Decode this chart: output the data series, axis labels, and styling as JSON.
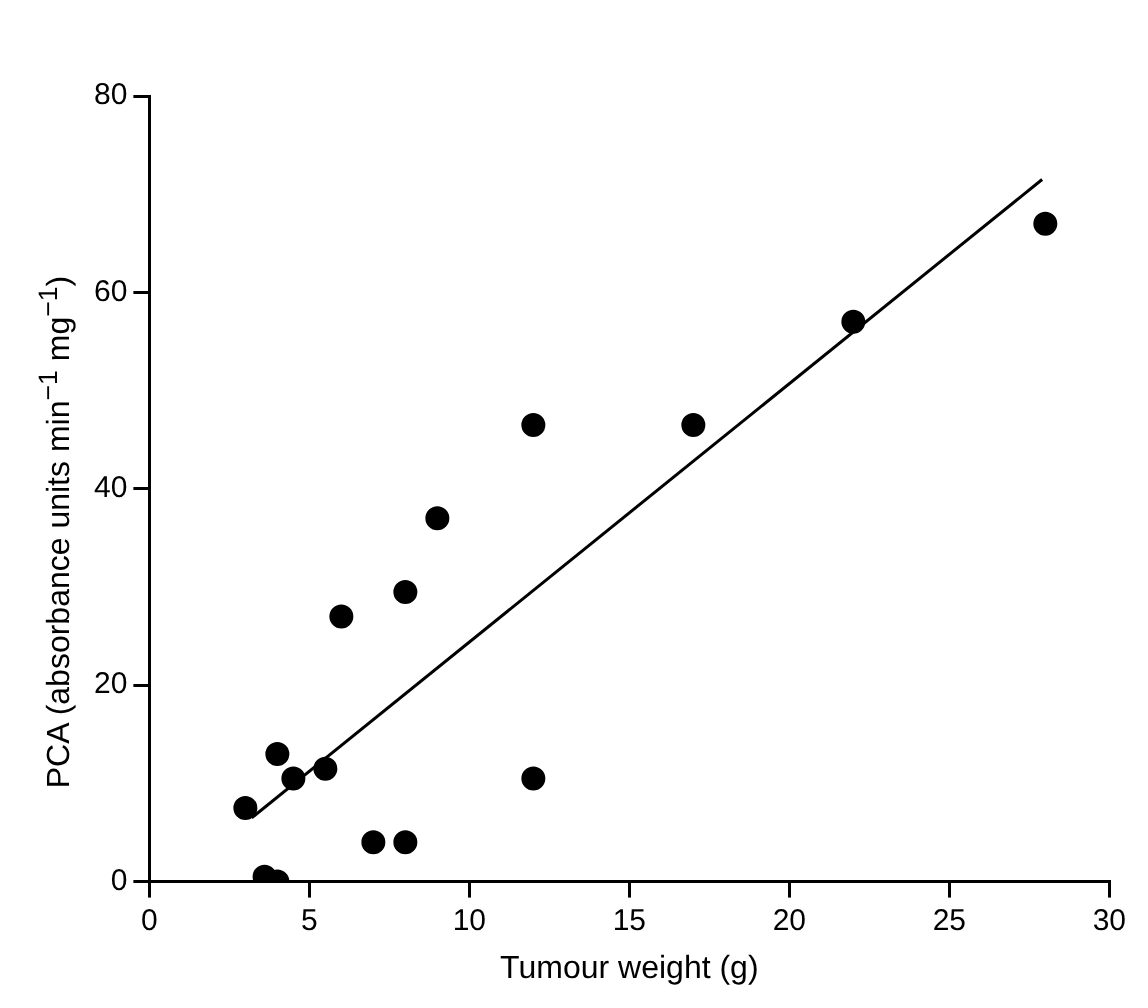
{
  "chart_data": {
    "type": "scatter",
    "xlabel": "Tumour weight (g)",
    "ylabel": "PCA (absorbance units min$^{−1}$ mg$^{−1}$)",
    "xlim": [
      0,
      30
    ],
    "xticks": [
      0,
      5,
      10,
      15,
      20,
      25,
      30
    ],
    "ylim": [
      0,
      80
    ],
    "yticks": [
      0,
      20,
      40,
      60,
      80
    ],
    "grid": false,
    "legend": false,
    "marker": "circle",
    "series": [
      {
        "type": "scatter",
        "color": "#000000",
        "x": [
          3,
          3.6,
          4,
          4,
          4.5,
          5.5,
          6,
          7,
          8,
          8,
          9,
          12,
          12,
          17,
          22,
          28
        ],
        "values": [
          7.5,
          0.5,
          0,
          13,
          10.5,
          11.5,
          27,
          4,
          4,
          29.5,
          37,
          10.5,
          46.5,
          46.5,
          57,
          67
        ]
      },
      {
        "type": "line",
        "color": "#000000",
        "marker": "none",
        "line_style": "solid",
        "x": [
          3.2,
          27.9
        ],
        "values": [
          6.5,
          71.5
        ]
      }
    ]
  }
}
